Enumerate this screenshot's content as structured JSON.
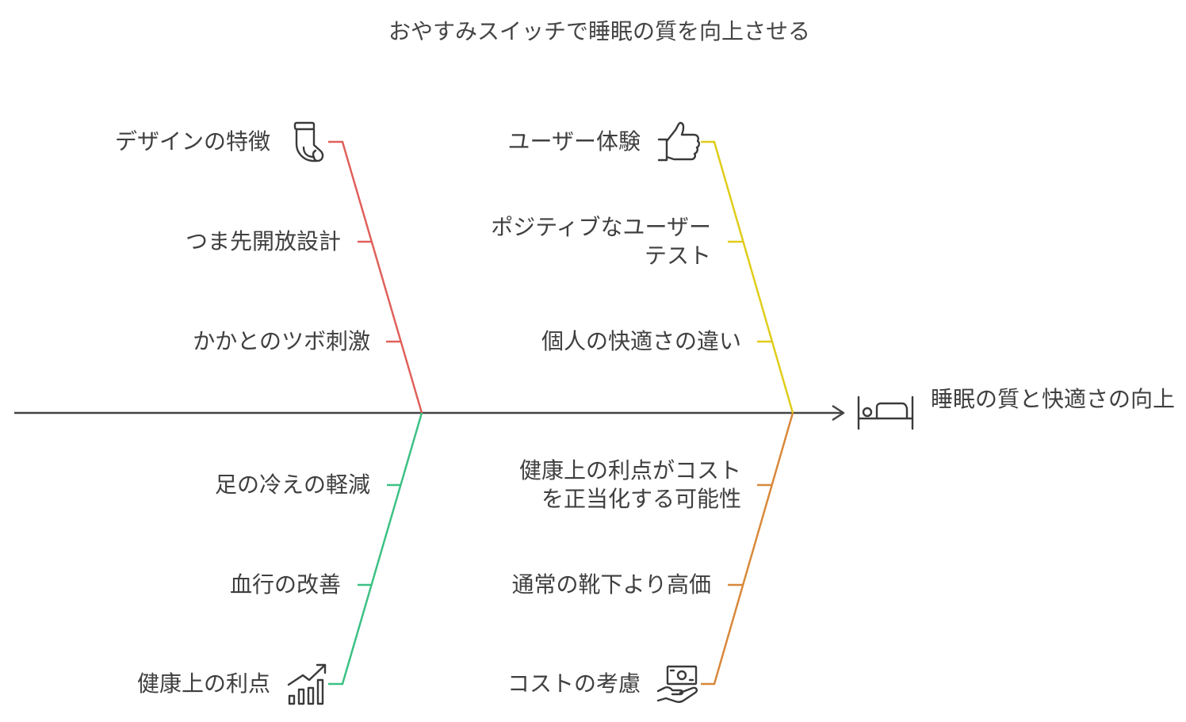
{
  "title": "おやすみスイッチで睡眠の質を向上させる",
  "outcome": "睡眠の質と快適さの向上",
  "categories": {
    "design": {
      "label": "デザインの特徴",
      "icon": "sock-icon",
      "color": "#e0605a",
      "causes": [
        "つま先開放設計",
        "かかとのツボ刺激"
      ]
    },
    "user_experience": {
      "label": "ユーザー体験",
      "icon": "thumbs-up-icon",
      "color": "#e0cc1a",
      "causes": [
        "ポジティブなユーザーテスト",
        "個人の快適さの違い"
      ]
    },
    "health": {
      "label": "健康上の利点",
      "icon": "growth-chart-icon",
      "color": "#3cc184",
      "causes": [
        "足の冷えの軽減",
        "血行の改善"
      ]
    },
    "cost": {
      "label": "コストの考慮",
      "icon": "money-hand-icon",
      "color": "#d9883a",
      "causes": [
        "健康上の利点がコストを正当化する可能性",
        "通常の靴下より高価"
      ]
    }
  },
  "outcome_icon": "bed-icon",
  "spine_color": "#444444"
}
